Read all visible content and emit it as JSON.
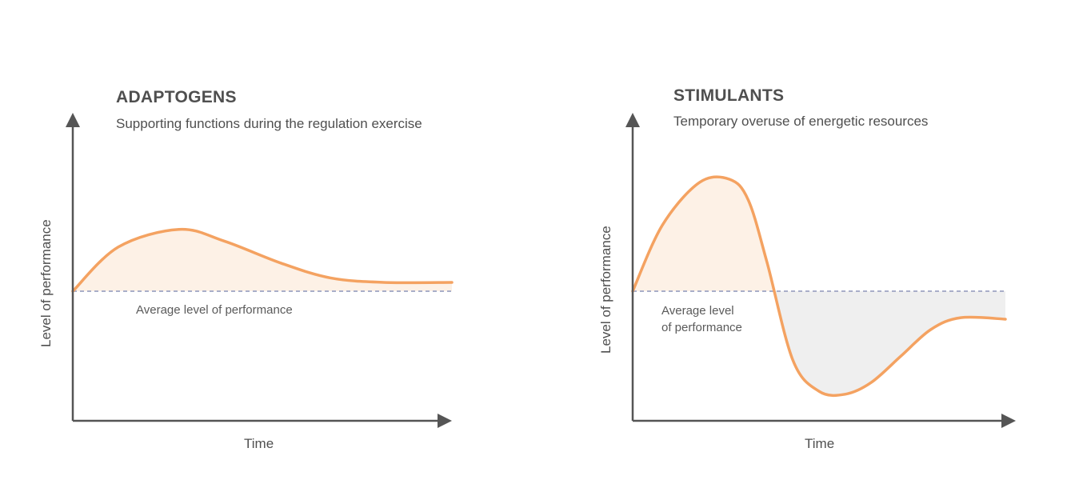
{
  "chart_data": [
    {
      "type": "area",
      "title": "ADAPTOGENS",
      "subtitle": "Supporting functions during the regulation exercise",
      "xlabel": "Time",
      "ylabel": "Level of performance",
      "baseline_label": "Average level of performance",
      "baseline": 0,
      "xlim": [
        0,
        100
      ],
      "ylim": [
        -100,
        100
      ],
      "x": [
        0,
        12,
        28,
        40,
        55,
        68,
        82,
        100
      ],
      "values": [
        0,
        30,
        42,
        34,
        19,
        9,
        6,
        6
      ],
      "colors": {
        "line": "#f4a261",
        "fill_above": "#fdf1e6",
        "fill_below": "#efefef",
        "axis": "#555555",
        "baseline": "#a9aec9"
      }
    },
    {
      "type": "area",
      "title": "STIMULANTS",
      "subtitle": "Temporary overuse of energetic resources",
      "xlabel": "Time",
      "ylabel": "Level of performance",
      "baseline_label": "Average level of performance",
      "baseline_label_lines": [
        "Average level",
        "of performance"
      ],
      "baseline": 0,
      "xlim": [
        0,
        100
      ],
      "ylim": [
        -100,
        100
      ],
      "x": [
        0,
        8,
        18,
        26,
        31,
        36,
        43,
        50,
        57,
        64,
        72,
        80,
        88,
        100
      ],
      "values": [
        0,
        45,
        74,
        76,
        62,
        20,
        -47,
        -68,
        -70,
        -62,
        -44,
        -26,
        -18,
        -19
      ],
      "colors": {
        "line": "#f4a261",
        "fill_above": "#fdf1e6",
        "fill_below": "#efefef",
        "axis": "#555555",
        "baseline": "#a9aec9"
      }
    }
  ]
}
